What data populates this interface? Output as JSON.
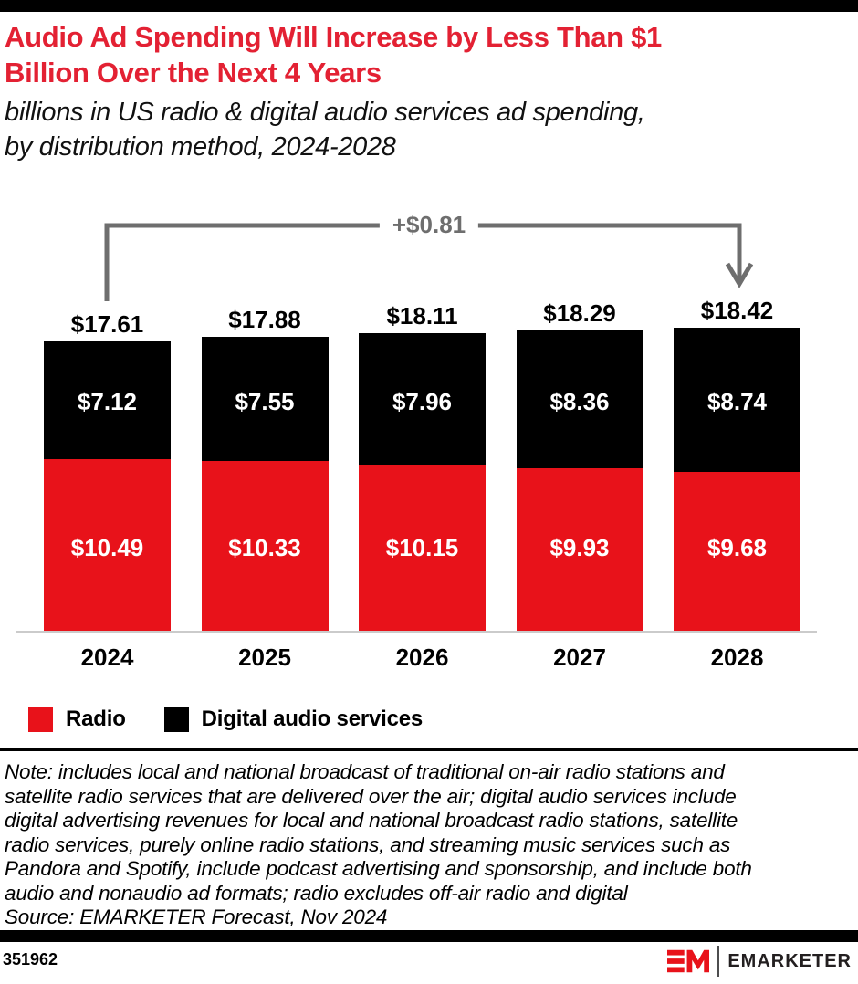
{
  "header": {
    "title_lines": [
      "Audio Ad Spending Will Increase by Less Than $1",
      "Billion Over the Next 4 Years"
    ],
    "subtitle_lines": [
      "billions in US radio & digital audio services ad spending,",
      "by distribution method, 2024-2028"
    ]
  },
  "chart_data": {
    "type": "bar",
    "stacked": true,
    "categories": [
      "2024",
      "2025",
      "2026",
      "2027",
      "2028"
    ],
    "series": [
      {
        "name": "Radio",
        "color": "#E8121A",
        "values": [
          10.49,
          10.33,
          10.15,
          9.93,
          9.68
        ]
      },
      {
        "name": "Digital audio services",
        "color": "#000000",
        "values": [
          7.12,
          7.55,
          7.96,
          8.36,
          8.74
        ]
      }
    ],
    "totals": [
      17.61,
      17.88,
      18.11,
      18.29,
      18.42
    ],
    "value_prefix": "$",
    "unit": "billions USD",
    "annotation": {
      "label": "+$0.81",
      "from": "2024",
      "to": "2028"
    },
    "legend_position": "bottom-left",
    "grid": false,
    "ylim": [
      0,
      20
    ]
  },
  "note": {
    "lines": [
      "Note: includes local and national broadcast of traditional on-air radio stations and",
      "satellite radio services that are delivered over the air; digital audio services include",
      "digital advertising revenues for local and national broadcast radio stations, satellite",
      "radio services, purely online radio stations, and streaming music services such as",
      "Pandora and Spotify, include podcast advertising and sponsorship, and include both",
      "audio and nonaudio ad formats; radio excludes off-air radio and digital"
    ],
    "source": "Source: EMARKETER Forecast, Nov 2024"
  },
  "footer": {
    "chart_id": "351962",
    "brand": "EMARKETER",
    "logo_monogram": "EM"
  },
  "colors": {
    "bar_red": "#E8121A",
    "bar_black": "#000000",
    "title_red": "#E32133",
    "annotation_gray": "#6E6E6E",
    "axis_line": "#CBCBCB"
  }
}
